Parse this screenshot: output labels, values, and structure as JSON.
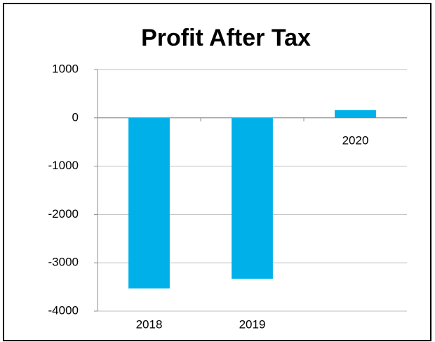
{
  "chart_data": {
    "type": "bar",
    "title": "Profit After Tax",
    "categories": [
      "2018",
      "2019",
      "2020"
    ],
    "values": [
      -3530,
      -3330,
      160
    ],
    "color": "#00b0e8",
    "ylim": [
      -4000,
      1000
    ],
    "yticks": [
      -4000,
      -3000,
      -2000,
      -1000,
      0,
      1000
    ],
    "grid": true
  }
}
